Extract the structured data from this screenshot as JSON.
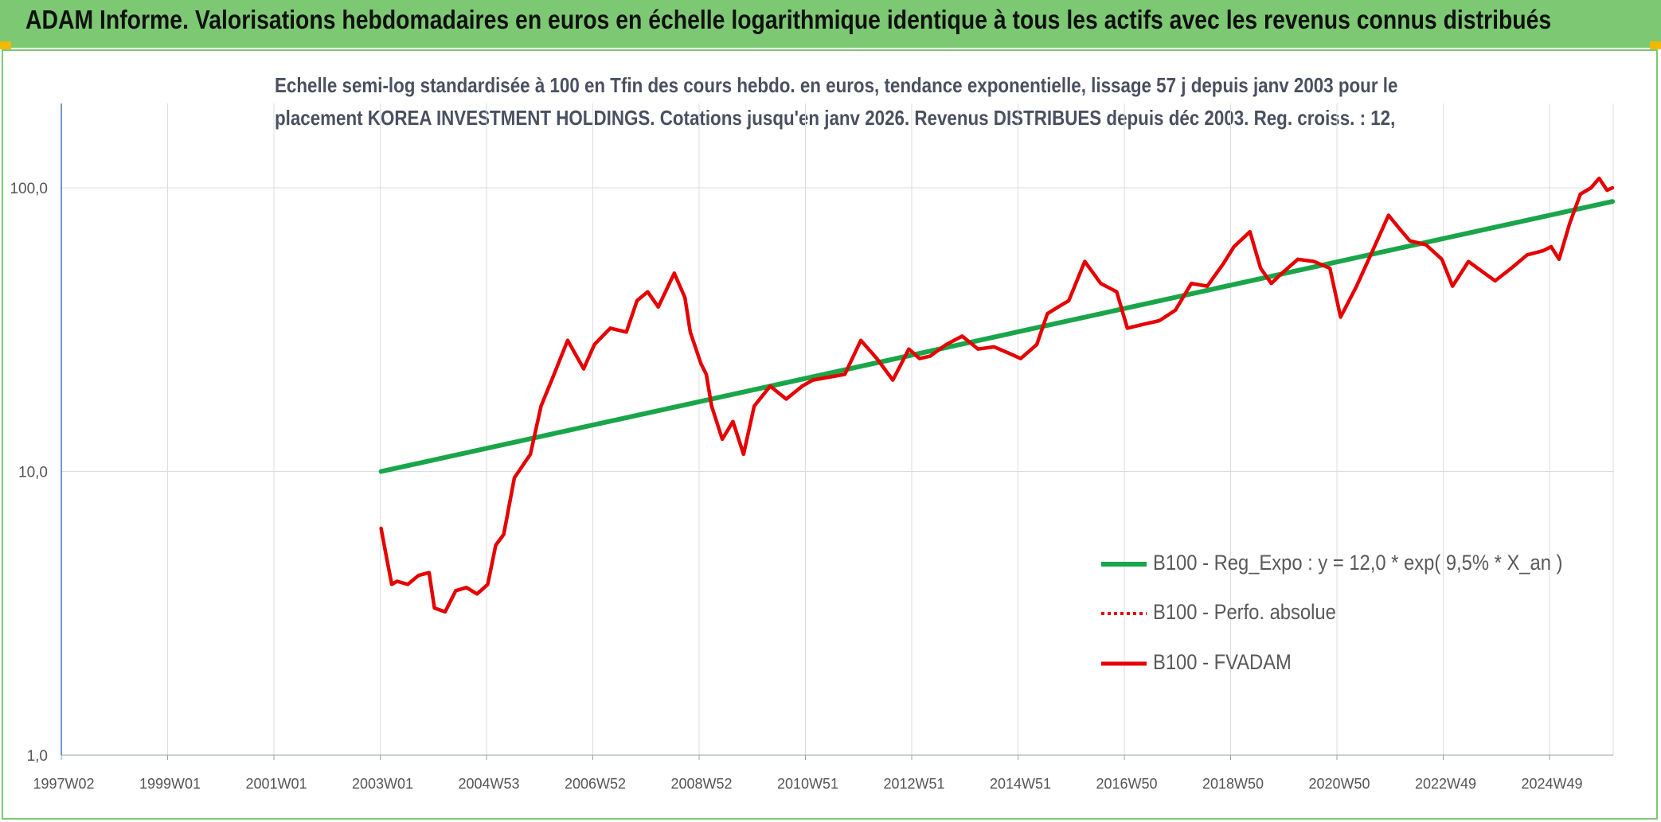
{
  "header": {
    "title": "ADAM Informe. Valorisations hebdomadaires en euros en échelle logarithmique identique à tous les actifs avec les revenus connus distribués"
  },
  "chart_data": {
    "type": "line",
    "title_lines": [
      "Echelle semi-log standardisée à 100 en Tfin des cours hebdo. en euros, tendance exponentielle, lissage 57 j depuis janv 2003 pour le",
      "placement KOREA INVESTMENT HOLDINGS. Cotations jusqu'en janv 2026. Revenus DISTRIBUES depuis déc 2003. Reg. croiss. : 12,"
    ],
    "y_scale": "log",
    "ylim": [
      1,
      100
    ],
    "y_ticks": [
      "100,0",
      "10,0",
      "1,0"
    ],
    "x_ticks": [
      "1997W02",
      "1999W01",
      "2001W01",
      "2003W01",
      "2004W53",
      "2006W52",
      "2008W52",
      "2010W51",
      "2012W51",
      "2014W51",
      "2016W50",
      "2018W50",
      "2020W50",
      "2022W49",
      "2024W49"
    ],
    "x_range": [
      1997.0,
      2026.1
    ],
    "grid": true,
    "legend_position": "right",
    "series": [
      {
        "name": "B100 - Reg_Expo : y = 12,0 * exp( 9,5% *  X_an )",
        "color": "#1aa54a",
        "style": "solid",
        "x": [
          2003.0,
          2026.1
        ],
        "y": [
          10.0,
          89.5
        ]
      },
      {
        "name": "B100 - Perfo. absolue",
        "color": "#e60000",
        "style": "dotted",
        "x": [],
        "y": []
      },
      {
        "name": "B100 - FVADAM",
        "color": "#e60000",
        "style": "solid",
        "x": [
          2003.0,
          2003.1,
          2003.2,
          2003.3,
          2003.5,
          2003.7,
          2003.9,
          2004.0,
          2004.2,
          2004.4,
          2004.6,
          2004.8,
          2005.0,
          2005.15,
          2005.3,
          2005.5,
          2005.8,
          2006.0,
          2006.2,
          2006.5,
          2006.8,
          2007.0,
          2007.3,
          2007.6,
          2007.8,
          2008.0,
          2008.2,
          2008.5,
          2008.7,
          2008.8,
          2009.0,
          2009.1,
          2009.2,
          2009.4,
          2009.6,
          2009.8,
          2010.0,
          2010.3,
          2010.6,
          2010.9,
          2011.1,
          2011.4,
          2011.7,
          2012.0,
          2012.3,
          2012.6,
          2012.9,
          2013.1,
          2013.3,
          2013.6,
          2013.9,
          2014.2,
          2014.5,
          2014.8,
          2015.0,
          2015.3,
          2015.5,
          2015.7,
          2015.9,
          2016.2,
          2016.5,
          2016.8,
          2017.0,
          2017.3,
          2017.6,
          2017.9,
          2018.2,
          2018.5,
          2018.8,
          2019.0,
          2019.3,
          2019.5,
          2019.7,
          2019.9,
          2020.2,
          2020.5,
          2020.8,
          2021.0,
          2021.3,
          2021.6,
          2021.9,
          2022.1,
          2022.3,
          2022.6,
          2022.9,
          2023.1,
          2023.4,
          2023.7,
          2023.9,
          2024.2,
          2024.5,
          2024.8,
          2024.95,
          2025.1,
          2025.3,
          2025.5,
          2025.7,
          2025.85,
          2026.0,
          2026.1
        ],
        "y": [
          6.3,
          5.0,
          4.0,
          4.1,
          4.0,
          4.3,
          4.4,
          3.3,
          3.2,
          3.8,
          3.9,
          3.7,
          4.0,
          5.5,
          6.0,
          9.5,
          11.5,
          17.0,
          21.0,
          29.0,
          23.0,
          28.0,
          32.0,
          31.0,
          40.0,
          43.0,
          38.0,
          50.0,
          41.0,
          31.0,
          24.0,
          22.0,
          17.0,
          13.0,
          15.0,
          11.5,
          17.0,
          20.0,
          18.0,
          20.0,
          21.0,
          21.5,
          22.0,
          29.0,
          25.0,
          21.0,
          27.0,
          25.0,
          25.5,
          28.0,
          30.0,
          27.0,
          27.5,
          26.0,
          25.0,
          28.0,
          36.0,
          38.0,
          40.0,
          55.0,
          46.0,
          43.0,
          32.0,
          33.0,
          34.0,
          37.0,
          46.0,
          45.0,
          54.0,
          62.0,
          70.0,
          52.0,
          46.0,
          50.0,
          56.0,
          55.0,
          52.0,
          35.0,
          45.0,
          60.0,
          80.0,
          72.0,
          65.0,
          63.0,
          56.0,
          45.0,
          55.0,
          50.0,
          47.0,
          52.0,
          58.0,
          60.0,
          62.0,
          56.0,
          75.0,
          95.0,
          100.0,
          108.0,
          98.0,
          100.0
        ]
      }
    ]
  }
}
